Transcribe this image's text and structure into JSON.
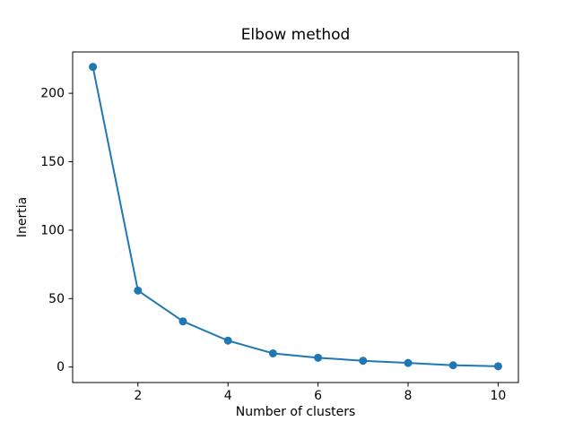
{
  "figure": {
    "background_color": "#ffffff",
    "frame_color": "#000000",
    "text_color": "#000000"
  },
  "chart_data": {
    "type": "line",
    "title": "Elbow method",
    "xlabel": "Number of clusters",
    "ylabel": "Inertia",
    "x": [
      1,
      2,
      3,
      4,
      5,
      6,
      7,
      8,
      9,
      10
    ],
    "values": [
      219.3,
      55.9,
      33.4,
      19.3,
      10.0,
      6.8,
      4.6,
      3.0,
      1.3,
      0.6
    ],
    "series_name": "Inertia",
    "xticks": [
      2,
      4,
      6,
      8,
      10
    ],
    "yticks": [
      0,
      50,
      100,
      150,
      200
    ],
    "xlim": [
      0.55,
      10.45
    ],
    "ylim": [
      -11.3,
      230.2
    ],
    "line_color": "#1f77b4",
    "marker": "circle",
    "marker_color": "#1f77b4",
    "grid": false,
    "legend": false
  }
}
